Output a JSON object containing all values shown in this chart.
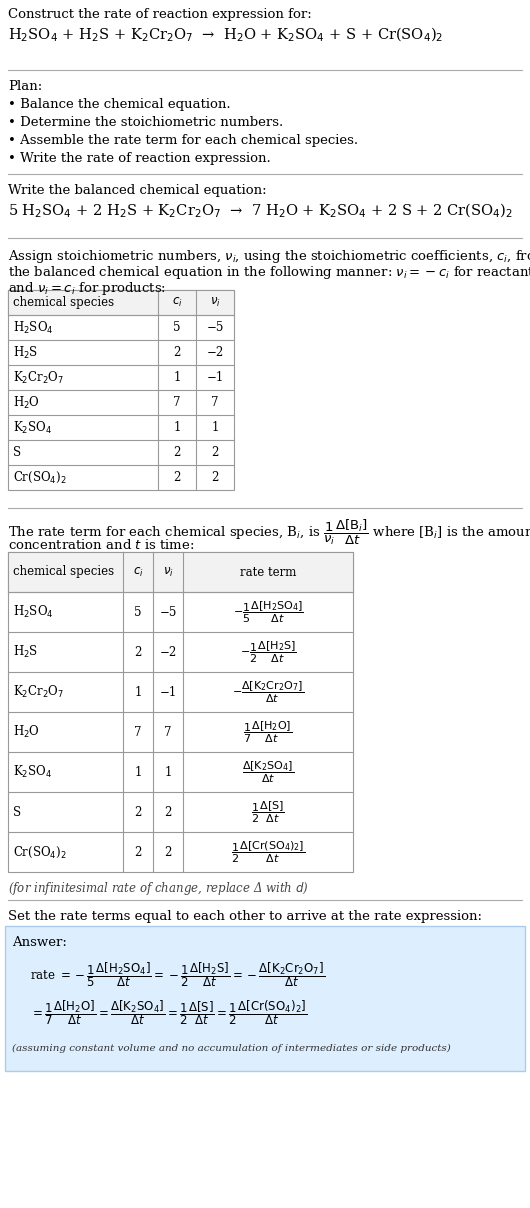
{
  "bg_color": "#ffffff",
  "text_color": "#000000",
  "title_line1": "Construct the rate of reaction expression for:",
  "reaction_unbalanced": "H$_2$SO$_4$ + H$_2$S + K$_2$Cr$_2$O$_7$  →  H$_2$O + K$_2$SO$_4$ + S + Cr(SO$_4$)$_2$",
  "plan_header": "Plan:",
  "plan_items": [
    "• Balance the chemical equation.",
    "• Determine the stoichiometric numbers.",
    "• Assemble the rate term for each chemical species.",
    "• Write the rate of reaction expression."
  ],
  "balanced_header": "Write the balanced chemical equation:",
  "reaction_balanced": "5 H$_2$SO$_4$ + 2 H$_2$S + K$_2$Cr$_2$O$_7$  →  7 H$_2$O + K$_2$SO$_4$ + 2 S + 2 Cr(SO$_4$)$_2$",
  "assign_text1": "Assign stoichiometric numbers, $\\nu_i$, using the stoichiometric coefficients, $c_i$, from",
  "assign_text2": "the balanced chemical equation in the following manner: $\\nu_i = -c_i$ for reactants",
  "assign_text3": "and $\\nu_i = c_i$ for products:",
  "table1_headers": [
    "chemical species",
    "$c_i$",
    "$\\nu_i$"
  ],
  "table1_rows": [
    [
      "H$_2$SO$_4$",
      "5",
      "−5"
    ],
    [
      "H$_2$S",
      "2",
      "−2"
    ],
    [
      "K$_2$Cr$_2$O$_7$",
      "1",
      "−1"
    ],
    [
      "H$_2$O",
      "7",
      "7"
    ],
    [
      "K$_2$SO$_4$",
      "1",
      "1"
    ],
    [
      "S",
      "2",
      "2"
    ],
    [
      "Cr(SO$_4$)$_2$",
      "2",
      "2"
    ]
  ],
  "rate_term_text1": "The rate term for each chemical species, B$_i$, is $\\dfrac{1}{\\nu_i}\\dfrac{\\Delta[\\mathrm{B}_i]}{\\Delta t}$ where [B$_i$] is the amount",
  "rate_term_text2": "concentration and $t$ is time:",
  "table2_headers": [
    "chemical species",
    "$c_i$",
    "$\\nu_i$",
    "rate term"
  ],
  "table2_rows": [
    [
      "H$_2$SO$_4$",
      "5",
      "−5",
      "$-\\dfrac{1}{5}\\dfrac{\\Delta[\\mathrm{H_2SO_4}]}{\\Delta t}$"
    ],
    [
      "H$_2$S",
      "2",
      "−2",
      "$-\\dfrac{1}{2}\\dfrac{\\Delta[\\mathrm{H_2S}]}{\\Delta t}$"
    ],
    [
      "K$_2$Cr$_2$O$_7$",
      "1",
      "−1",
      "$-\\dfrac{\\Delta[\\mathrm{K_2Cr_2O_7}]}{\\Delta t}$"
    ],
    [
      "H$_2$O",
      "7",
      "7",
      "$\\dfrac{1}{7}\\dfrac{\\Delta[\\mathrm{H_2O}]}{\\Delta t}$"
    ],
    [
      "K$_2$SO$_4$",
      "1",
      "1",
      "$\\dfrac{\\Delta[\\mathrm{K_2SO_4}]}{\\Delta t}$"
    ],
    [
      "S",
      "2",
      "2",
      "$\\dfrac{1}{2}\\dfrac{\\Delta[\\mathrm{S}]}{\\Delta t}$"
    ],
    [
      "Cr(SO$_4$)$_2$",
      "2",
      "2",
      "$\\dfrac{1}{2}\\dfrac{\\Delta[\\mathrm{Cr(SO_4)_2}]}{\\Delta t}$"
    ]
  ],
  "infinitesimal_note": "(for infinitesimal rate of change, replace Δ with $d$)",
  "set_rate_text": "Set the rate terms equal to each other to arrive at the rate expression:",
  "answer_box_color": "#ddeeff",
  "answer_label": "Answer:",
  "answer_line1": "rate $= -\\dfrac{1}{5}\\dfrac{\\Delta[\\mathrm{H_2SO_4}]}{\\Delta t} = -\\dfrac{1}{2}\\dfrac{\\Delta[\\mathrm{H_2S}]}{\\Delta t} = -\\dfrac{\\Delta[\\mathrm{K_2Cr_2O_7}]}{\\Delta t}$",
  "answer_line2": "$= \\dfrac{1}{7}\\dfrac{\\Delta[\\mathrm{H_2O}]}{\\Delta t} = \\dfrac{\\Delta[\\mathrm{K_2SO_4}]}{\\Delta t} = \\dfrac{1}{2}\\dfrac{\\Delta[\\mathrm{S}]}{\\Delta t} = \\dfrac{1}{2}\\dfrac{\\Delta[\\mathrm{Cr(SO_4)_2}]}{\\Delta t}$",
  "answer_note": "(assuming constant volume and no accumulation of intermediates or side products)"
}
